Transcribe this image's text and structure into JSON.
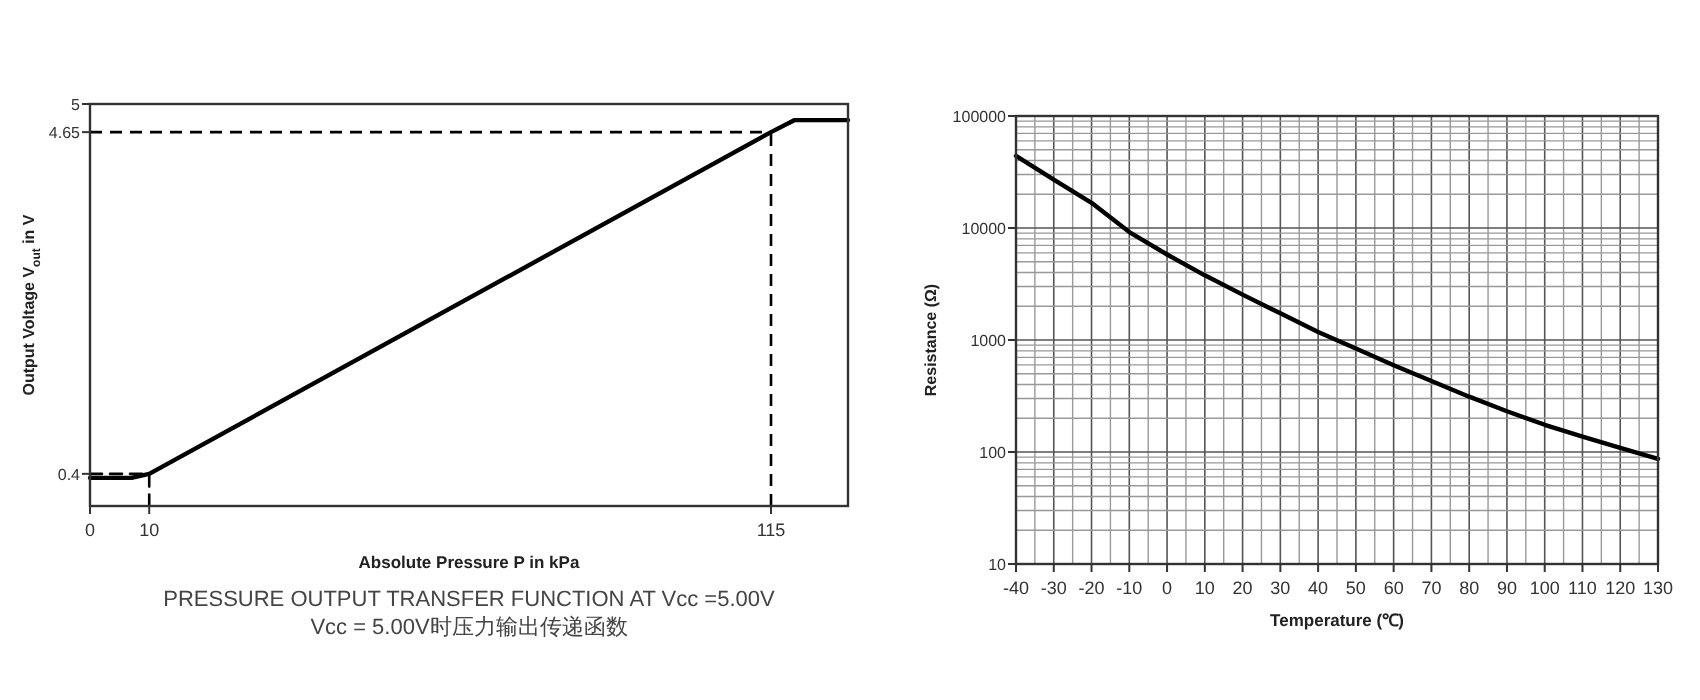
{
  "chart_data": [
    {
      "type": "line",
      "xlabel": "Absolute Pressure P in kPa",
      "ylabel": "Output Voltage V$_{out}$ in V",
      "xlim": [
        0,
        128
      ],
      "ylim": [
        0,
        5
      ],
      "xticks": [
        0,
        10,
        115
      ],
      "yticks": [
        0.4,
        4.65,
        5
      ],
      "series": [
        {
          "color": "#000000",
          "x": [
            0,
            7,
            10,
            115,
            119,
            128
          ],
          "values": [
            0.35,
            0.35,
            0.4,
            4.65,
            4.8,
            4.8
          ]
        },
        {
          "type": "line",
          "color": "#000000",
          "line_style": "dashed",
          "x": [
            0,
            10,
            10
          ],
          "values": [
            0.4,
            0.4,
            0
          ]
        }
      ],
      "line_style": "solid",
      "grid": false,
      "ref_lines": [
        {
          "axis": "x",
          "value": 115,
          "line_style": "dashed",
          "color": "#000000"
        },
        {
          "axis": "y",
          "value": 4.65,
          "line_style": "dashed",
          "color": "#000000"
        }
      ],
      "annotations": [
        "PRESSURE OUTPUT TRANSFER FUNCTION AT Vcc =5.00V",
        "Vcc = 5.00V时压力输出传递函数"
      ]
    },
    {
      "type": "line",
      "xlabel": "Temperature (℃)",
      "ylabel": "Resistance (Ω)",
      "log": "y",
      "xlim": [
        -40,
        130
      ],
      "ylim": [
        10,
        100000
      ],
      "xticks": [
        -40,
        -30,
        -20,
        -10,
        0,
        10,
        20,
        30,
        40,
        50,
        60,
        70,
        80,
        90,
        100,
        110,
        120,
        130
      ],
      "yticks": [
        10,
        100,
        1000,
        10000,
        100000
      ],
      "grid": true,
      "line_style": "solid",
      "series": [
        {
          "color": "#000000",
          "x": [
            -40,
            -30,
            -20,
            -10,
            0,
            10,
            20,
            30,
            40,
            50,
            60,
            70,
            80,
            90,
            100,
            110,
            120,
            130
          ],
          "values": [
            44000,
            27000,
            16800,
            9200,
            5800,
            3780,
            2540,
            1730,
            1180,
            840,
            595,
            430,
            312,
            231,
            175,
            137,
            109,
            87
          ]
        }
      ]
    }
  ]
}
